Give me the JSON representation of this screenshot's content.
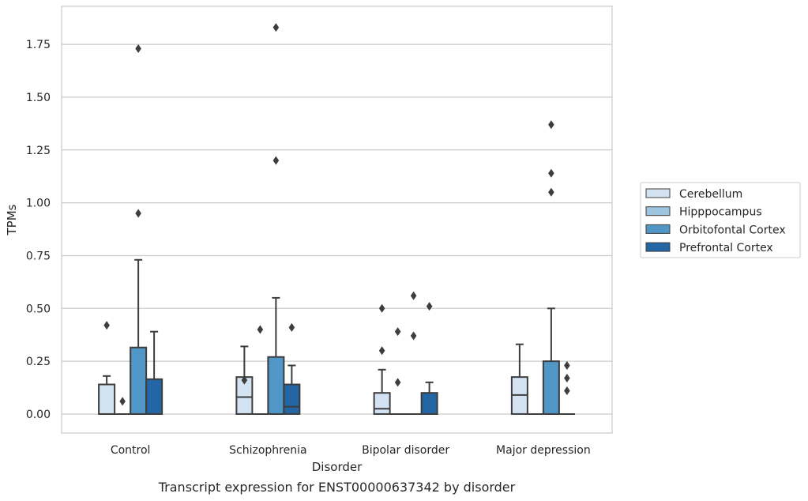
{
  "chart_data": {
    "type": "box",
    "title": "",
    "caption": "Transcript expression for ENST00000637342 by disorder",
    "xlabel": "Disorder",
    "ylabel": "TPMs",
    "ylim": [
      -0.09,
      1.93
    ],
    "yticks": [
      0.0,
      0.25,
      0.5,
      0.75,
      1.0,
      1.25,
      1.5,
      1.75
    ],
    "ytick_labels": [
      "0.00",
      "0.25",
      "0.50",
      "0.75",
      "1.00",
      "1.25",
      "1.50",
      "1.75"
    ],
    "grid": true,
    "legend_position": "right",
    "categories": [
      "Control",
      "Schizophrenia",
      "Bipolar disorder",
      "Major depression"
    ],
    "series": [
      {
        "name": "Cerebellum",
        "color": "#d4e3f2",
        "boxes": [
          {
            "q1": 0.0,
            "median": 0.0,
            "q3": 0.14,
            "whisker_low": 0.0,
            "whisker_high": 0.18,
            "outliers": [
              0.42
            ]
          },
          {
            "q1": 0.0,
            "median": 0.08,
            "q3": 0.175,
            "whisker_low": 0.0,
            "whisker_high": 0.32,
            "outliers": [
              0.16
            ]
          },
          {
            "q1": 0.0,
            "median": 0.025,
            "q3": 0.1,
            "whisker_low": 0.0,
            "whisker_high": 0.21,
            "outliers": [
              0.5,
              0.3
            ]
          },
          {
            "q1": 0.0,
            "median": 0.09,
            "q3": 0.175,
            "whisker_low": 0.0,
            "whisker_high": 0.33,
            "outliers": []
          }
        ]
      },
      {
        "name": "Hipppocampus",
        "color": "#9ec5e0",
        "boxes": [
          {
            "q1": 0.0,
            "median": 0.0,
            "q3": 0.0,
            "whisker_low": 0.0,
            "whisker_high": 0.0,
            "outliers": [
              0.06
            ]
          },
          {
            "q1": 0.0,
            "median": 0.0,
            "q3": 0.0,
            "whisker_low": 0.0,
            "whisker_high": 0.0,
            "outliers": [
              0.4
            ]
          },
          {
            "q1": 0.0,
            "median": 0.0,
            "q3": 0.0,
            "whisker_low": 0.0,
            "whisker_high": 0.0,
            "outliers": [
              0.39,
              0.15
            ]
          },
          {
            "q1": 0.0,
            "median": 0.0,
            "q3": 0.0,
            "whisker_low": 0.0,
            "whisker_high": 0.0,
            "outliers": []
          }
        ]
      },
      {
        "name": "Orbitofontal Cortex",
        "color": "#5096c6",
        "boxes": [
          {
            "q1": 0.0,
            "median": 0.0,
            "q3": 0.315,
            "whisker_low": 0.0,
            "whisker_high": 0.73,
            "outliers": [
              1.73,
              0.95
            ]
          },
          {
            "q1": 0.0,
            "median": 0.0,
            "q3": 0.27,
            "whisker_low": 0.0,
            "whisker_high": 0.55,
            "outliers": [
              1.83,
              1.2
            ]
          },
          {
            "q1": 0.0,
            "median": 0.0,
            "q3": 0.0,
            "whisker_low": 0.0,
            "whisker_high": 0.0,
            "outliers": [
              0.56,
              0.37
            ]
          },
          {
            "q1": 0.0,
            "median": 0.0,
            "q3": 0.25,
            "whisker_low": 0.0,
            "whisker_high": 0.5,
            "outliers": [
              1.37,
              1.14,
              1.05
            ]
          }
        ]
      },
      {
        "name": "Prefrontal Cortex",
        "color": "#2465a3",
        "boxes": [
          {
            "q1": 0.0,
            "median": 0.0,
            "q3": 0.165,
            "whisker_low": 0.0,
            "whisker_high": 0.39,
            "outliers": []
          },
          {
            "q1": 0.0,
            "median": 0.035,
            "q3": 0.14,
            "whisker_low": 0.0,
            "whisker_high": 0.23,
            "outliers": [
              0.41
            ]
          },
          {
            "q1": 0.0,
            "median": 0.0,
            "q3": 0.1,
            "whisker_low": 0.0,
            "whisker_high": 0.15,
            "outliers": [
              0.51
            ]
          },
          {
            "q1": 0.0,
            "median": 0.0,
            "q3": 0.0,
            "whisker_low": 0.0,
            "whisker_high": 0.0,
            "outliers": [
              0.23,
              0.17,
              0.11
            ]
          }
        ]
      }
    ]
  }
}
